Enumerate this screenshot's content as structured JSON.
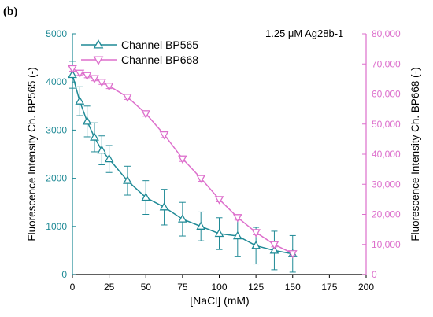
{
  "panel_label": "(b)",
  "colors": {
    "series1": "#1f8a96",
    "series2": "#dd6fcc",
    "axis": "#000000"
  },
  "chart_data": {
    "type": "line",
    "annotation": "1.25 μM Ag28b-1",
    "xlabel": "[NaCl] (mM)",
    "ylabel_left": "Fluorescence Intensity Ch. BP565 (-)",
    "ylabel_right": "Fluorescence Intensity Ch. BP668 (-)",
    "xlim": [
      0,
      200
    ],
    "x_ticks": [
      0,
      25,
      50,
      75,
      100,
      125,
      150,
      175,
      200
    ],
    "x_tick_labels": [
      "0",
      "25",
      "50",
      "75",
      "100",
      "125",
      "150",
      "175",
      "200"
    ],
    "ylim_left": [
      0,
      5000
    ],
    "y_left_ticks": [
      0,
      1000,
      2000,
      3000,
      4000,
      5000
    ],
    "y_left_tick_labels": [
      "0",
      "1000",
      "2000",
      "3000",
      "4000",
      "5000"
    ],
    "ylim_right": [
      0,
      80000
    ],
    "y_right_ticks": [
      0,
      10000,
      20000,
      30000,
      40000,
      50000,
      60000,
      70000,
      80000
    ],
    "y_right_tick_labels": [
      "0",
      "10,000",
      "20,000",
      "30,000",
      "40,000",
      "50,000",
      "60,000",
      "70,000",
      "80,000"
    ],
    "legend_position": "top-left",
    "grid": false,
    "series": [
      {
        "name": "Channel BP565",
        "axis": "left",
        "marker": "triangle-up",
        "x": [
          0,
          5,
          10,
          15,
          20,
          25,
          37.5,
          50,
          62.5,
          75,
          87.5,
          100,
          112.5,
          125,
          137.5,
          150
        ],
        "y": [
          4150,
          3600,
          3180,
          2850,
          2580,
          2400,
          1950,
          1600,
          1400,
          1150,
          1000,
          850,
          800,
          600,
          500,
          430
        ],
        "err": [
          280,
          300,
          320,
          300,
          300,
          280,
          300,
          350,
          370,
          350,
          300,
          330,
          430,
          380,
          400,
          380
        ]
      },
      {
        "name": "Channel BP668",
        "axis": "right",
        "marker": "triangle-down",
        "x": [
          0,
          5,
          10,
          15,
          20,
          25,
          37.5,
          50,
          62.5,
          75,
          87.5,
          100,
          112.5,
          125,
          137.5,
          150
        ],
        "y": [
          68500,
          67000,
          66200,
          65200,
          64000,
          62700,
          59000,
          53500,
          46500,
          38500,
          32000,
          25000,
          19000,
          14000,
          10000,
          7000
        ],
        "err": [
          900,
          800,
          800,
          800,
          800,
          900,
          800,
          900,
          1000,
          900,
          1000,
          800,
          900,
          800,
          800,
          700
        ]
      }
    ]
  }
}
